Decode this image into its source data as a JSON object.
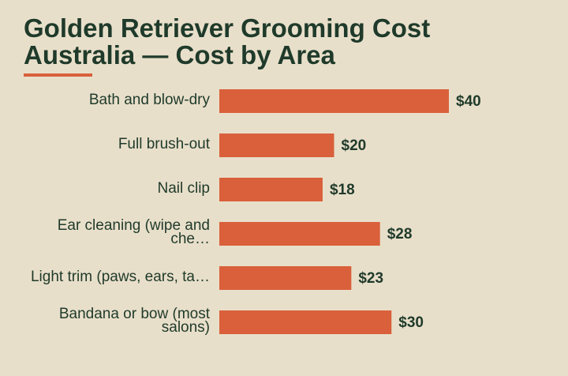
{
  "chart_data": {
    "type": "bar",
    "orientation": "horizontal",
    "title": "Golden Retriever Grooming Cost Australia — Cost by Area",
    "categories": [
      "Bath and blow-dry",
      "Full brush-out",
      "Nail clip",
      "Ear cleaning (wipe and che…",
      "Light trim (paws, ears, ta…",
      "Bandana or bow (most salons)"
    ],
    "values": [
      40,
      20,
      18,
      28,
      23,
      30
    ],
    "value_labels": [
      "$40",
      "$20",
      "$18",
      "$28",
      "$23",
      "$30"
    ],
    "color": "#d9603b"
  }
}
